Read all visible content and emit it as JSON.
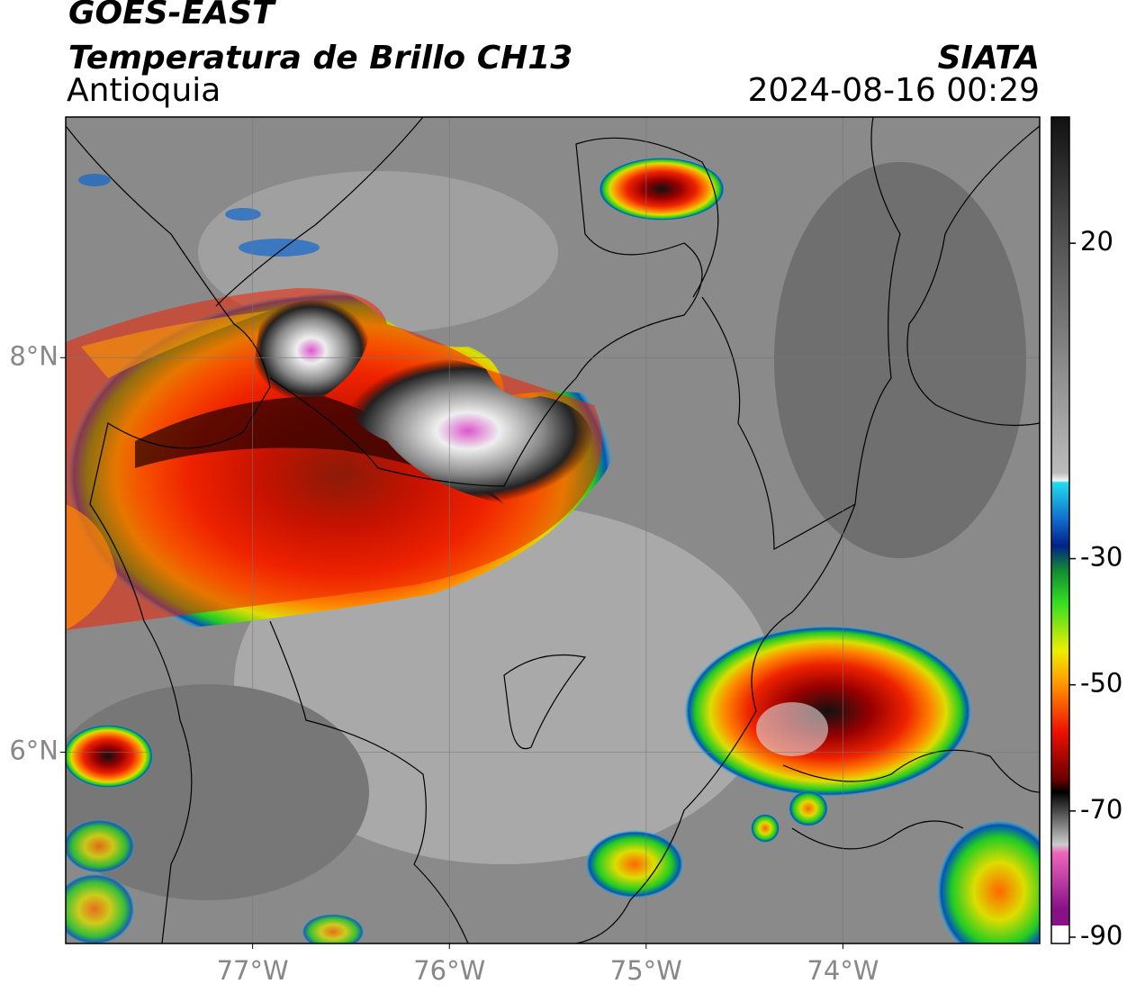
{
  "header": {
    "title": "GOES-EAST",
    "subtitle": "Temperatura de Brillo CH13",
    "region": "Antioquia",
    "source": "SIATA",
    "timestamp": "2024-08-16 00:29"
  },
  "map": {
    "lonlim": [
      -77.95,
      -73
    ],
    "latlim": [
      5.03,
      9.22
    ],
    "lonticks": [
      {
        "value": -77,
        "label": "77°W"
      },
      {
        "value": -76,
        "label": "76°W"
      },
      {
        "value": -75,
        "label": "75°W"
      },
      {
        "value": -74,
        "label": "74°W"
      }
    ],
    "latticks": [
      {
        "value": 8,
        "label": "8°N"
      },
      {
        "value": 6,
        "label": "6°N"
      }
    ],
    "grid": true
  },
  "colorbar": {
    "lim": [
      -91,
      40
    ],
    "ticks": [
      20,
      -30,
      -50,
      -70,
      -90
    ]
  }
}
